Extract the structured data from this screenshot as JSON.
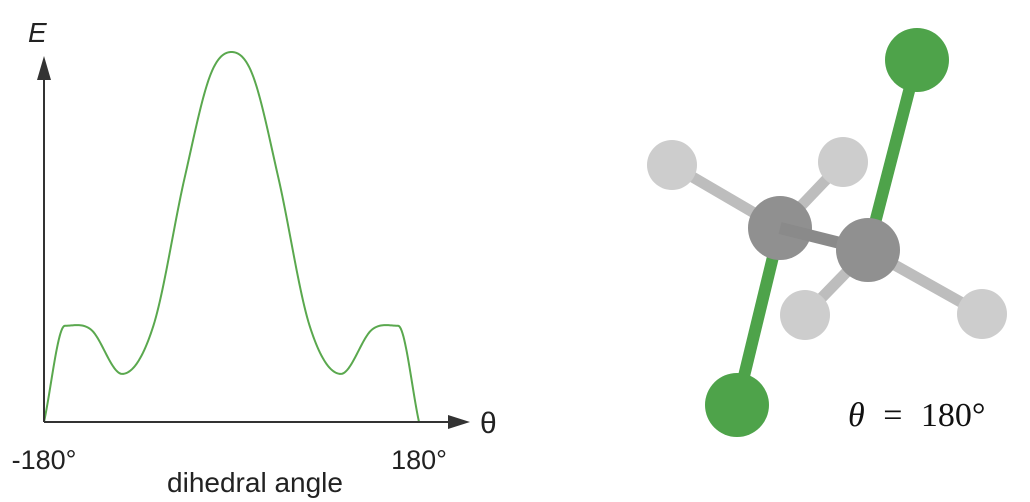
{
  "chart_data": {
    "type": "line",
    "title": "",
    "ylabel": "E",
    "xlabel": "dihedral angle",
    "x_axis_symbol": "θ",
    "x_ticks": [
      "-180°",
      "180°"
    ],
    "xlim": [
      -180,
      180
    ],
    "ylim": [
      0,
      1
    ],
    "grid": false,
    "series": [
      {
        "color": "#5aa84e",
        "x": [
          -180,
          -160,
          -135,
          -105,
          -75,
          -45,
          -20,
          0,
          20,
          45,
          75,
          105,
          135,
          160,
          180
        ],
        "y": [
          0.0,
          0.26,
          0.25,
          0.13,
          0.26,
          0.66,
          0.94,
          1.0,
          0.94,
          0.66,
          0.26,
          0.13,
          0.25,
          0.26,
          0.0
        ]
      }
    ]
  },
  "molecule": {
    "angle_label": {
      "symbol": "θ",
      "equals": "=",
      "value": "180°"
    },
    "colors": {
      "substituent": "#4ea34a",
      "carbon": "#909090",
      "hydrogen": "#cdcdcd",
      "bond_gray": "#bdbdbd",
      "carbon_bond": "#8a8a8a"
    }
  }
}
